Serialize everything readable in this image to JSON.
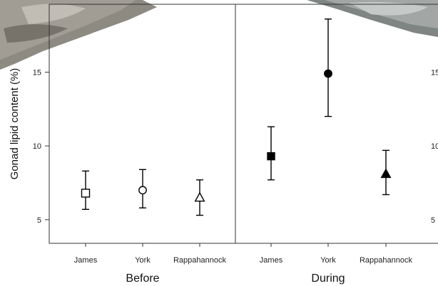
{
  "chart_data": {
    "type": "scatter",
    "ylabel": "Gonad lipid content (%)",
    "yticks": [
      5,
      10,
      15
    ],
    "ylim": [
      3.4,
      19.6
    ],
    "error_bars": true,
    "panels": [
      {
        "label": "Before",
        "categories": [
          "James",
          "York",
          "Rappahannock"
        ],
        "points": [
          {
            "category": "James",
            "mean": 6.8,
            "lower": 5.7,
            "upper": 8.3,
            "marker": "square-open"
          },
          {
            "category": "York",
            "mean": 7.0,
            "lower": 5.8,
            "upper": 8.4,
            "marker": "circle-open"
          },
          {
            "category": "Rappahannock",
            "mean": 6.5,
            "lower": 5.3,
            "upper": 7.7,
            "marker": "triangle-open"
          }
        ]
      },
      {
        "label": "During",
        "categories": [
          "James",
          "York",
          "Rappahannock"
        ],
        "points": [
          {
            "category": "James",
            "mean": 9.3,
            "lower": 7.7,
            "upper": 11.3,
            "marker": "square-filled"
          },
          {
            "category": "York",
            "mean": 14.9,
            "lower": 12.0,
            "upper": 18.6,
            "marker": "circle-filled"
          },
          {
            "category": "Rappahannock",
            "mean": 8.1,
            "lower": 6.7,
            "upper": 9.7,
            "marker": "triangle-filled"
          }
        ]
      }
    ],
    "right_partial_ticks": [
      "15",
      "10",
      "5"
    ]
  },
  "colors": {
    "axis": "#333333",
    "marker": "#000000",
    "background": "#ffffff",
    "photo_overlay": "#8a8f8d"
  }
}
